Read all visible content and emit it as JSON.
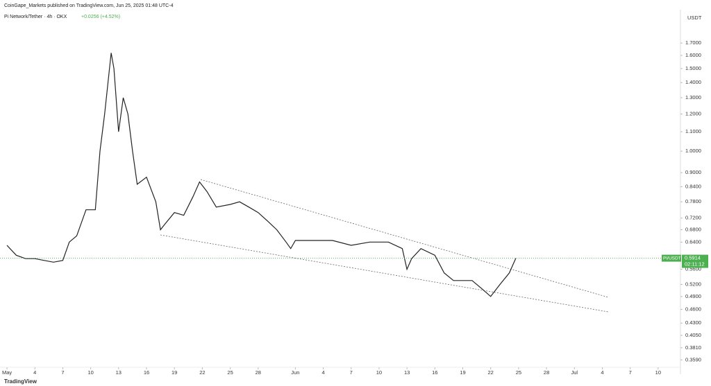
{
  "header": {
    "publisher": "CoinGape_Markets published on TradingView.com, Jun 25, 2025 01:48 UTC-4",
    "symbol": "Pi Network/Tether · 4h · OKX",
    "change": "+0.0256 (+4.52%)",
    "currency": "USDT",
    "brand": "TradingView"
  },
  "chart_data": {
    "type": "line",
    "log_scale": true,
    "color": "#222222",
    "x": [
      1,
      2,
      3,
      4,
      5,
      6,
      7,
      7.7,
      8.5,
      9.5,
      10.5,
      11,
      11.5,
      12.2,
      12.5,
      13,
      13.5,
      14,
      14.5,
      15,
      16,
      17,
      17.5,
      18,
      19,
      20,
      21,
      21.7,
      22.5,
      23.5,
      25,
      26,
      27,
      28,
      29,
      30,
      31,
      31.5,
      32,
      34,
      36,
      38,
      40,
      42,
      43.5,
      44,
      44.5,
      45.5,
      47,
      48,
      49,
      50,
      51,
      52,
      53,
      54,
      55,
      55.7
    ],
    "values": [
      0.63,
      0.6,
      0.59,
      0.59,
      0.585,
      0.58,
      0.585,
      0.64,
      0.66,
      0.75,
      0.75,
      1.0,
      1.2,
      1.62,
      1.5,
      1.1,
      1.3,
      1.2,
      1.0,
      0.85,
      0.88,
      0.78,
      0.68,
      0.7,
      0.74,
      0.73,
      0.8,
      0.86,
      0.82,
      0.76,
      0.77,
      0.78,
      0.76,
      0.74,
      0.71,
      0.68,
      0.64,
      0.62,
      0.645,
      0.645,
      0.645,
      0.63,
      0.64,
      0.64,
      0.62,
      0.56,
      0.59,
      0.62,
      0.6,
      0.55,
      0.53,
      0.53,
      0.53,
      0.51,
      0.49,
      0.52,
      0.55,
      0.5914
    ],
    "xlim": [
      0.25,
      73.4
    ],
    "xticks": [
      {
        "value": 1,
        "label": "May"
      },
      4,
      7,
      10,
      13,
      16,
      19,
      22,
      25,
      28,
      {
        "value": 32,
        "label": "Jun"
      },
      {
        "value": 35,
        "label": "4"
      },
      {
        "value": 38,
        "label": "7"
      },
      {
        "value": 41,
        "label": "10"
      },
      {
        "value": 44,
        "label": "13"
      },
      {
        "value": 47,
        "label": "16"
      },
      {
        "value": 50,
        "label": "19"
      },
      {
        "value": 53,
        "label": "22"
      },
      {
        "value": 56,
        "label": "25"
      },
      {
        "value": 59,
        "label": "28"
      },
      {
        "value": 62,
        "label": "Jul"
      },
      {
        "value": 65,
        "label": "4"
      },
      {
        "value": 68,
        "label": "7"
      },
      {
        "value": 71,
        "label": "10"
      }
    ],
    "ylim": [
      0.3346,
      2.1
    ],
    "yticks": [
      {
        "value": 0.359,
        "label": "0.3590"
      },
      {
        "value": 0.381,
        "label": "0.3810"
      },
      {
        "value": 0.405,
        "label": "0.4050"
      },
      {
        "value": 0.43,
        "label": "0.4300"
      },
      {
        "value": 0.46,
        "label": "0.4600"
      },
      {
        "value": 0.49,
        "label": "0.4900"
      },
      {
        "value": 0.52,
        "label": "0.5200"
      },
      {
        "value": 0.56,
        "label": "0.5600"
      },
      {
        "value": 0.64,
        "label": "0.6400"
      },
      {
        "value": 0.68,
        "label": "0.6800"
      },
      {
        "value": 0.72,
        "label": "0.7200"
      },
      {
        "value": 0.78,
        "label": "0.7800"
      },
      {
        "value": 0.84,
        "label": "0.8400"
      },
      {
        "value": 0.9,
        "label": "0.9000"
      },
      {
        "value": 1,
        "label": "1.0000"
      },
      {
        "value": 1.1,
        "label": "1.1000"
      },
      {
        "value": 1.2,
        "label": "1.2000"
      },
      {
        "value": 1.3,
        "label": "1.3000"
      },
      {
        "value": 1.4,
        "label": "1.4000"
      },
      {
        "value": 1.5,
        "label": "1.5000"
      },
      {
        "value": 1.6,
        "label": "1.6000"
      },
      {
        "value": 1.7,
        "label": "1.7000"
      }
    ],
    "last_price": 0.5914,
    "last_label": "PI/USDT",
    "countdown": "02:11:12",
    "last_color": "#4caf50"
  }
}
